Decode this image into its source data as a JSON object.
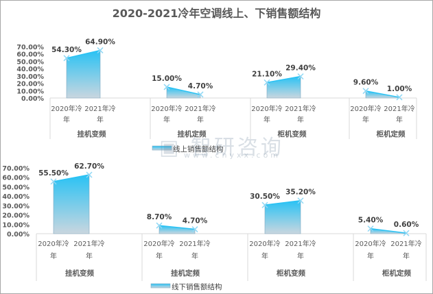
{
  "title": "2020-2021冷年空调线上、下销售额结构",
  "watermark": "智研咨询 www.chyxx.com",
  "chart_data": [
    {
      "type": "area",
      "title": "2020-2021冷年空调线上、下销售额结构",
      "legend": "线上销售额结构",
      "legend_position": "bottom",
      "groups": [
        "挂机变频",
        "挂机定频",
        "柜机变频",
        "柜机定频"
      ],
      "x": [
        "2020年冷年",
        "2021年冷年"
      ],
      "values": [
        [
          54.3,
          64.9
        ],
        [
          15.0,
          4.7
        ],
        [
          21.1,
          29.4
        ],
        [
          9.6,
          1.0
        ]
      ],
      "labels": [
        [
          "54.30%",
          "64.90%"
        ],
        [
          "15.00%",
          "4.70%"
        ],
        [
          "21.10%",
          "29.40%"
        ],
        [
          "9.60%",
          "1.00%"
        ]
      ],
      "ylim": [
        0,
        70
      ],
      "yticks": [
        "0.00%",
        "10.00%",
        "20.00%",
        "30.00%",
        "40.00%",
        "50.00%",
        "60.00%",
        "70.00%"
      ],
      "color_top": "#29c2f4",
      "color_bottom": "#c9d6df"
    },
    {
      "type": "area",
      "legend": "线下销售额结构",
      "legend_position": "bottom",
      "groups": [
        "挂机变频",
        "挂机定频",
        "柜机变频",
        "柜机定频"
      ],
      "x": [
        "2020年冷年",
        "2021年冷年"
      ],
      "values": [
        [
          55.5,
          62.7
        ],
        [
          8.7,
          4.7
        ],
        [
          30.5,
          35.2
        ],
        [
          5.4,
          0.6
        ]
      ],
      "labels": [
        [
          "55.50%",
          "62.70%"
        ],
        [
          "8.70%",
          "4.70%"
        ],
        [
          "30.50%",
          "35.20%"
        ],
        [
          "5.40%",
          "0.60%"
        ]
      ],
      "ylim": [
        0,
        70
      ],
      "yticks": [
        "0.00%",
        "10.00%",
        "20.00%",
        "30.00%",
        "40.00%",
        "50.00%",
        "60.00%",
        "70.00%"
      ],
      "color_top": "#29c2f4",
      "color_bottom": "#c9d6df"
    }
  ]
}
